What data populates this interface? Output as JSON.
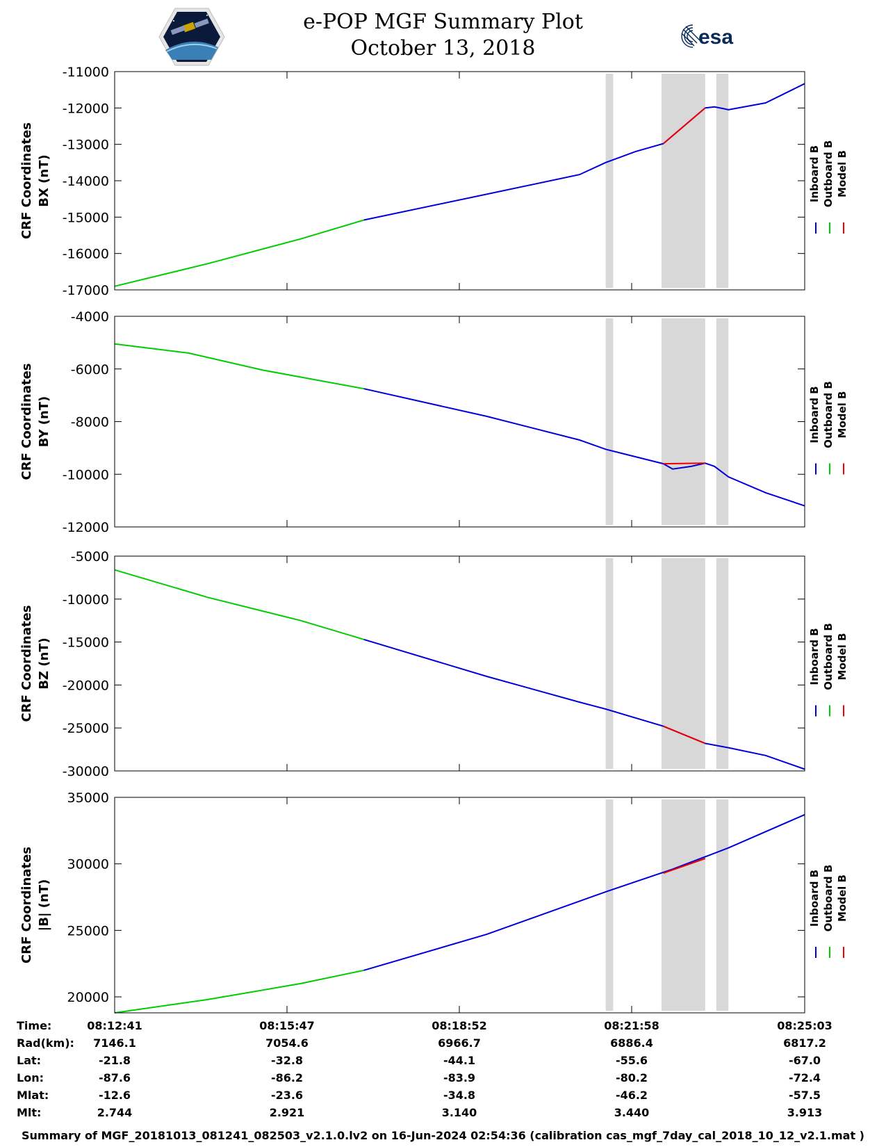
{
  "header": {
    "title_line1": "e-POP MGF Summary Plot",
    "title_line2": "October 13, 2018",
    "left_logo": "cassiope-satellite-logo",
    "right_logo": "esa-logo",
    "right_logo_text": "esa"
  },
  "colors": {
    "inboard": "#0000dd",
    "outboard": "#00cc00",
    "model": "#ee0000",
    "shading": "#d8d8d8"
  },
  "chart_data": [
    {
      "type": "line",
      "ylabel_line1": "CRF Coordinates",
      "ylabel_line2": "BX (nT)",
      "ylim": [
        -17000,
        -11000
      ],
      "yticks": [
        -17000,
        -16000,
        -15000,
        -14000,
        -13000,
        -12000,
        -11000
      ],
      "xlim": [
        0,
        742
      ],
      "legend": [
        "Inboard B",
        "Outboard B",
        "Model B"
      ],
      "legend_placement": "right",
      "shaded_x": [
        [
          528,
          536
        ],
        [
          588,
          635
        ],
        [
          647,
          660
        ]
      ],
      "series": [
        {
          "name": "Outboard B",
          "x": [
            0,
            100,
            200,
            268
          ],
          "y": [
            -16900,
            -16280,
            -15600,
            -15080
          ]
        },
        {
          "name": "Inboard B",
          "x": [
            268,
            400,
            500,
            528,
            560,
            590,
            635,
            645,
            655,
            660,
            700,
            742
          ],
          "y": [
            -15080,
            -14370,
            -13830,
            -13500,
            -13200,
            -12980,
            -12000,
            -11970,
            -12020,
            -12050,
            -11860,
            -11330
          ]
        },
        {
          "name": "Model B",
          "x": [
            590,
            635
          ],
          "y": [
            -12980,
            -12000
          ]
        }
      ]
    },
    {
      "type": "line",
      "ylabel_line1": "CRF Coordinates",
      "ylabel_line2": "BY (nT)",
      "ylim": [
        -12000,
        -4000
      ],
      "yticks": [
        -12000,
        -10000,
        -8000,
        -6000,
        -4000
      ],
      "xlim": [
        0,
        742
      ],
      "legend": [
        "Inboard B",
        "Outboard B",
        "Model B"
      ],
      "legend_placement": "right",
      "shaded_x": [
        [
          528,
          536
        ],
        [
          588,
          635
        ],
        [
          647,
          660
        ]
      ],
      "series": [
        {
          "name": "Outboard B",
          "x": [
            0,
            80,
            160,
            268
          ],
          "y": [
            -5050,
            -5400,
            -6050,
            -6750
          ]
        },
        {
          "name": "Inboard B",
          "x": [
            268,
            400,
            500,
            528,
            590,
            600,
            620,
            635,
            645,
            660,
            700,
            742
          ],
          "y": [
            -6750,
            -7800,
            -8700,
            -9050,
            -9600,
            -9800,
            -9700,
            -9580,
            -9700,
            -10100,
            -10700,
            -11200
          ]
        },
        {
          "name": "Model B",
          "x": [
            590,
            635
          ],
          "y": [
            -9600,
            -9580
          ]
        }
      ]
    },
    {
      "type": "line",
      "ylabel_line1": "CRF Coordinates",
      "ylabel_line2": "BZ (nT)",
      "ylim": [
        -30000,
        -5000
      ],
      "yticks": [
        -30000,
        -25000,
        -20000,
        -15000,
        -10000,
        -5000
      ],
      "xlim": [
        0,
        742
      ],
      "legend": [
        "Inboard B",
        "Outboard B",
        "Model B"
      ],
      "legend_placement": "right",
      "shaded_x": [
        [
          528,
          536
        ],
        [
          588,
          635
        ],
        [
          647,
          660
        ]
      ],
      "series": [
        {
          "name": "Outboard B",
          "x": [
            0,
            100,
            200,
            268
          ],
          "y": [
            -6600,
            -9800,
            -12500,
            -14700
          ]
        },
        {
          "name": "Inboard B",
          "x": [
            268,
            400,
            500,
            528,
            590,
            635,
            660,
            700,
            742
          ],
          "y": [
            -14700,
            -19000,
            -22000,
            -22800,
            -24800,
            -26800,
            -27300,
            -28200,
            -29800
          ]
        },
        {
          "name": "Model B",
          "x": [
            590,
            635
          ],
          "y": [
            -24800,
            -26800
          ]
        }
      ]
    },
    {
      "type": "line",
      "ylabel_line1": "CRF Coordinates",
      "ylabel_line2": "|B| (nT)",
      "ylim": [
        18800,
        35000
      ],
      "yticks": [
        20000,
        25000,
        30000,
        35000
      ],
      "xlim": [
        0,
        742
      ],
      "legend": [
        "Inboard B",
        "Outboard B",
        "Model B"
      ],
      "legend_placement": "right",
      "shaded_x": [
        [
          528,
          536
        ],
        [
          588,
          635
        ],
        [
          647,
          660
        ]
      ],
      "series": [
        {
          "name": "Outboard B",
          "x": [
            0,
            100,
            200,
            268
          ],
          "y": [
            18800,
            19800,
            21000,
            22000
          ]
        },
        {
          "name": "Inboard B",
          "x": [
            268,
            400,
            500,
            528,
            600,
            660,
            742
          ],
          "y": [
            22000,
            24700,
            27200,
            27900,
            29600,
            31200,
            33700
          ]
        },
        {
          "name": "Model B",
          "x": [
            590,
            635
          ],
          "y": [
            29300,
            30400
          ]
        }
      ]
    }
  ],
  "ephemeris": {
    "row_labels": [
      "Time:",
      "Rad(km):",
      "Lat:",
      "Lon:",
      "Mlat:",
      "Mlt:"
    ],
    "columns": [
      [
        "08:12:41",
        "7146.1",
        "-21.8",
        "-87.6",
        "-12.6",
        "2.744"
      ],
      [
        "08:15:47",
        "7054.6",
        "-32.8",
        "-86.2",
        "-23.6",
        "2.921"
      ],
      [
        "08:18:52",
        "6966.7",
        "-44.1",
        "-83.9",
        "-34.8",
        "3.140"
      ],
      [
        "08:21:58",
        "6886.4",
        "-55.6",
        "-80.2",
        "-46.2",
        "3.440"
      ],
      [
        "08:25:03",
        "6817.2",
        "-67.0",
        "-72.4",
        "-57.5",
        "3.913"
      ]
    ]
  },
  "footer": "Summary of MGF_20181013_081241_082503_v2.1.0.lv2 on 16-Jun-2024 02:54:36 (calibration cas_mgf_7day_cal_2018_10_12_v2.1.mat )"
}
